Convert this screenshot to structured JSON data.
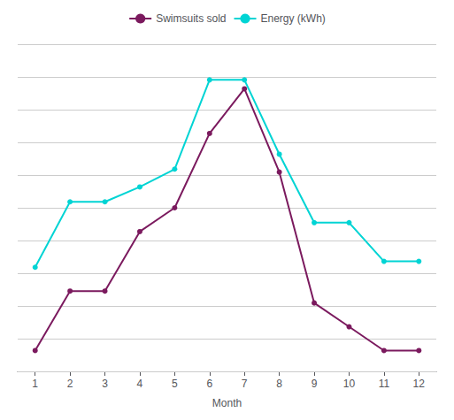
{
  "chart_data": {
    "type": "line",
    "x": [
      1,
      2,
      3,
      4,
      5,
      6,
      7,
      8,
      9,
      10,
      11,
      12
    ],
    "xlabel": "Month",
    "xlim": [
      0.5,
      12.5
    ],
    "xticks": [
      1,
      2,
      3,
      4,
      5,
      6,
      7,
      8,
      9,
      10,
      11,
      12
    ],
    "ylim": [
      -5,
      105
    ],
    "yticks": [
      -5,
      6,
      17,
      28,
      39,
      50,
      61,
      72,
      83,
      94,
      105
    ],
    "grid": true,
    "legend": "top",
    "tick_labels": "x",
    "marker": "circle",
    "series": [
      {
        "name": "Swimsuits sold",
        "color": "#7b1a5e",
        "values": [
          2,
          22,
          22,
          42,
          50,
          75,
          90,
          62,
          18,
          10,
          2,
          2
        ]
      },
      {
        "name": "Energy (kWh)",
        "color": "#00d4d4",
        "values": [
          30,
          52,
          52,
          57,
          63,
          93,
          93,
          68,
          45,
          45,
          32,
          32
        ]
      }
    ]
  }
}
